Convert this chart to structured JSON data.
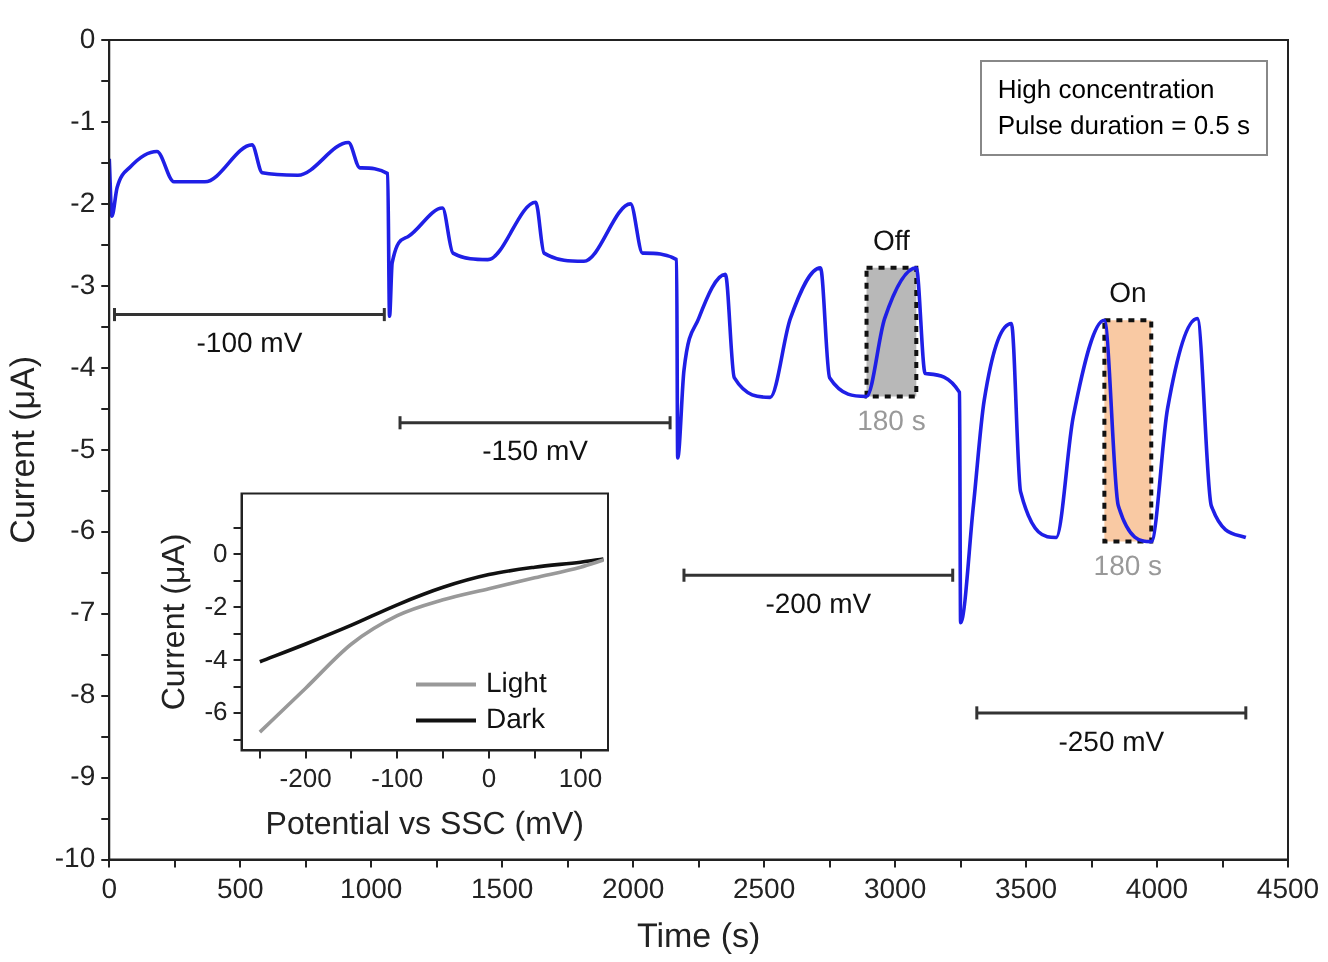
{
  "chart_data": [
    {
      "type": "line",
      "xlabel": "Time (s)",
      "ylabel": "Current (μA)",
      "xlim": [
        0,
        4500
      ],
      "ylim": [
        -10,
        0
      ],
      "xticks": [
        0,
        {
          "value": 250,
          "label": null
        },
        500,
        {
          "value": 750,
          "label": null
        },
        1000,
        {
          "value": 1250,
          "label": null
        },
        1500,
        {
          "value": 1750,
          "label": null
        },
        2000,
        {
          "value": 2250,
          "label": null
        },
        2500,
        {
          "value": 2750,
          "label": null
        },
        3000,
        {
          "value": 3250,
          "label": null
        },
        3500,
        {
          "value": 3750,
          "label": null
        },
        4000,
        {
          "value": 4250,
          "label": null
        },
        4500
      ],
      "yticks": [
        -10,
        {
          "value": -9.5,
          "label": null
        },
        -9,
        {
          "value": -8.5,
          "label": null
        },
        -8,
        {
          "value": -7.5,
          "label": null
        },
        -7,
        {
          "value": -6.5,
          "label": null
        },
        -6,
        {
          "value": -5.5,
          "label": null
        },
        -5,
        {
          "value": -4.5,
          "label": null
        },
        -4,
        {
          "value": -3.5,
          "label": null
        },
        -3,
        {
          "value": -2.5,
          "label": null
        },
        -2,
        {
          "value": -1.5,
          "label": null
        },
        -1,
        {
          "value": -0.5,
          "label": null
        },
        0
      ],
      "series": [
        {
          "color": "#1f1fe6",
          "x": [
            0,
            10,
            30,
            80,
            182,
            247,
            365,
            545,
            584,
            720,
            913,
            957,
            1063,
            1070,
            1080,
            1140,
            1272,
            1312,
            1445,
            1628,
            1660,
            1812,
            1990,
            2036,
            2166,
            2170,
            2194,
            2250,
            2352,
            2386,
            2523,
            2600,
            2715,
            2750,
            2891,
            2960,
            3081,
            3115,
            3246,
            3250,
            3299,
            3340,
            3444,
            3479,
            3615,
            3680,
            3799,
            3852,
            3978,
            4040,
            4154,
            4207,
            4339
          ],
          "values": [
            -1.45,
            -2.15,
            -1.8,
            -1.55,
            -1.36,
            -1.73,
            -1.73,
            -1.28,
            -1.62,
            -1.65,
            -1.25,
            -1.56,
            -1.63,
            -3.37,
            -2.72,
            -2.4,
            -2.05,
            -2.6,
            -2.68,
            -1.98,
            -2.6,
            -2.7,
            -2.0,
            -2.6,
            -2.68,
            -5.1,
            -4.03,
            -3.4,
            -2.86,
            -4.12,
            -4.36,
            -3.4,
            -2.78,
            -4.12,
            -4.35,
            -3.4,
            -2.78,
            -4.07,
            -4.3,
            -7.11,
            -5.68,
            -4.4,
            -3.46,
            -5.51,
            -6.07,
            -4.6,
            -3.42,
            -5.68,
            -6.12,
            -4.5,
            -3.4,
            -5.68,
            -6.07
          ]
        },
        {
          "name": "-100 mV",
          "color": "#333333",
          "x": [
            20,
            1050
          ],
          "values": [
            -3.35,
            -3.35
          ],
          "errors": [
            0.08,
            0.08
          ]
        },
        {
          "name": "-150 mV",
          "color": "#333333",
          "x": [
            1110,
            2141
          ],
          "values": [
            -4.67,
            -4.67
          ],
          "errors": [
            0.08,
            0.08
          ]
        },
        {
          "name": "-200 mV",
          "color": "#333333",
          "x": [
            2194,
            3220
          ],
          "values": [
            -6.53,
            -6.53
          ],
          "errors": [
            0.08,
            0.08
          ]
        },
        {
          "name": "-250 mV",
          "color": "#333333",
          "x": [
            3312,
            4339
          ],
          "values": [
            -8.21,
            -8.21
          ],
          "errors": [
            0.08,
            0.08
          ]
        }
      ],
      "bands": [
        {
          "axis": "x",
          "from": 2891,
          "to": 3081,
          "label": "Off",
          "color": "#b8b8b8"
        },
        {
          "axis": "x",
          "from": 3799,
          "to": 3978,
          "label": "On",
          "color": "#f9c9a3"
        }
      ],
      "annotations": [
        "High concentration",
        "Pulse duration = 0.5 s",
        "180 s",
        "180 s"
      ]
    },
    {
      "type": "line",
      "xlabel": "Potential vs SSC (mV)",
      "ylabel": "Current (μA)",
      "xlim": [
        -270,
        130
      ],
      "ylim": [
        -7.4,
        2.3
      ],
      "xticks": [
        {
          "value": -250,
          "label": null
        },
        -200,
        {
          "value": -150,
          "label": null
        },
        -100,
        {
          "value": -50,
          "label": null
        },
        0,
        {
          "value": 50,
          "label": null
        },
        100
      ],
      "yticks": [
        {
          "value": -7,
          "label": null
        },
        -6,
        {
          "value": -5,
          "label": null
        },
        -4,
        {
          "value": -3,
          "label": null
        },
        -2,
        {
          "value": -1,
          "label": null
        },
        0,
        {
          "value": 1,
          "label": null
        }
      ],
      "legend": "bottom right",
      "series": [
        {
          "name": "Light",
          "color": "#999999",
          "x": [
            -250,
            -200,
            -150,
            -100,
            -50,
            0,
            50,
            100,
            125
          ],
          "values": [
            -6.71,
            -5.05,
            -3.38,
            -2.31,
            -1.71,
            -1.29,
            -0.88,
            -0.48,
            -0.21
          ]
        },
        {
          "name": "Dark",
          "color": "#111111",
          "x": [
            -250,
            -200,
            -150,
            -100,
            -50,
            0,
            50,
            100,
            125
          ],
          "values": [
            -4.05,
            -3.38,
            -2.67,
            -1.9,
            -1.24,
            -0.76,
            -0.48,
            -0.29,
            -0.17
          ]
        }
      ]
    }
  ]
}
